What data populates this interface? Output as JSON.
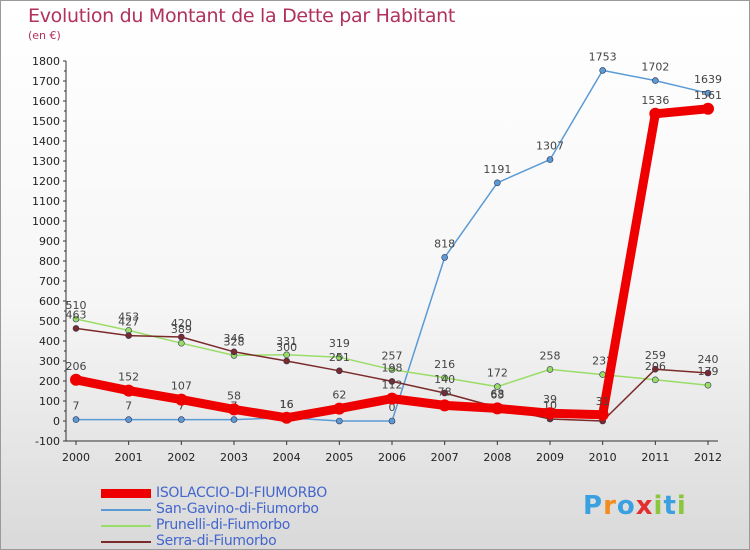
{
  "title": "Evolution du Montant de la Dette par Habitant",
  "unit_label": "(en €)",
  "chart_data": {
    "type": "line",
    "title": "Evolution du Montant de la Dette par Habitant",
    "subtitle": "(en €)",
    "x": [
      2000,
      2001,
      2002,
      2003,
      2004,
      2005,
      2006,
      2007,
      2008,
      2009,
      2010,
      2011,
      2012
    ],
    "ylim": [
      -100,
      1800
    ],
    "yticks": [
      -100,
      0,
      100,
      200,
      300,
      400,
      500,
      600,
      700,
      800,
      900,
      1000,
      1100,
      1200,
      1300,
      1400,
      1500,
      1600,
      1700,
      1800
    ],
    "grid": false,
    "legend_position": "bottom-left",
    "series": [
      {
        "name": "San-Gavino-di-Fiumorbo",
        "color": "#5b9bd5",
        "values": [
          7,
          7,
          7,
          7,
          16,
          0,
          0,
          818,
          1191,
          1307,
          1753,
          1702,
          1639
        ]
      },
      {
        "name": "Prunelli-di-Fiumorbo",
        "color": "#99dd66",
        "values": [
          510,
          453,
          389,
          328,
          331,
          319,
          257,
          216,
          172,
          258,
          232,
          206,
          179
        ]
      },
      {
        "name": "Serra-di-Fiumorbo",
        "color": "#7a2a2a",
        "values": [
          463,
          427,
          420,
          346,
          300,
          251,
          198,
          140,
          68,
          10,
          0,
          259,
          240
        ]
      },
      {
        "name": "ISOLACCIO-DI-FIUMORBO",
        "color": "#ee0000",
        "values": [
          206,
          152,
          107,
          58,
          16,
          62,
          112,
          78,
          63,
          39,
          31,
          1536,
          1561
        ]
      }
    ]
  },
  "legend": [
    {
      "name": "ISOLACCIO-DI-FIUMORBO",
      "color": "#ee0000"
    },
    {
      "name": "San-Gavino-di-Fiumorbo",
      "color": "#5b9bd5"
    },
    {
      "name": "Prunelli-di-Fiumorbo",
      "color": "#99dd66"
    },
    {
      "name": "Serra-di-Fiumorbo",
      "color": "#7a2a2a"
    }
  ],
  "logo": {
    "text": "Proxiti",
    "letter_colors": [
      "#3aa0e0",
      "#f28c1e",
      "#3aa0e0",
      "#e23030",
      "#8cc63f",
      "#3aa0e0",
      "#8cc63f"
    ]
  }
}
